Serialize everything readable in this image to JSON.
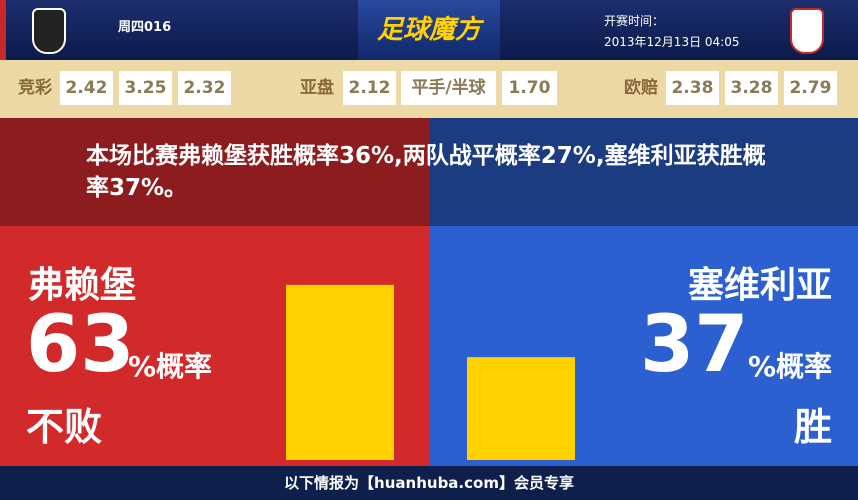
{
  "header": {
    "match": "周四016",
    "logo": "足球魔方",
    "kickoff_label": "开赛时间：",
    "kickoff": "2013年12月13日 04:05"
  },
  "odds": [
    {
      "label": "竞彩",
      "values": [
        "2.42",
        "3.25",
        "2.32"
      ]
    },
    {
      "label": "亚盘",
      "values": [
        "2.12",
        "平手/半球",
        "1.70"
      ]
    },
    {
      "label": "欧赔",
      "values": [
        "2.38",
        "3.28",
        "2.79"
      ]
    }
  ],
  "summary": "本场比赛弗赖堡获胜概率36%,两队战平概率27%,塞维利亚获胜概率37%。",
  "teams": [
    {
      "name": "弗赖堡",
      "percent": 63,
      "suffix": "%概率",
      "outcome": "不败"
    },
    {
      "name": "塞维利亚",
      "percent": 37,
      "suffix": "%概率",
      "outcome": "胜"
    }
  ],
  "footer": "以下情报为【huanhuba.com】会员专享"
}
